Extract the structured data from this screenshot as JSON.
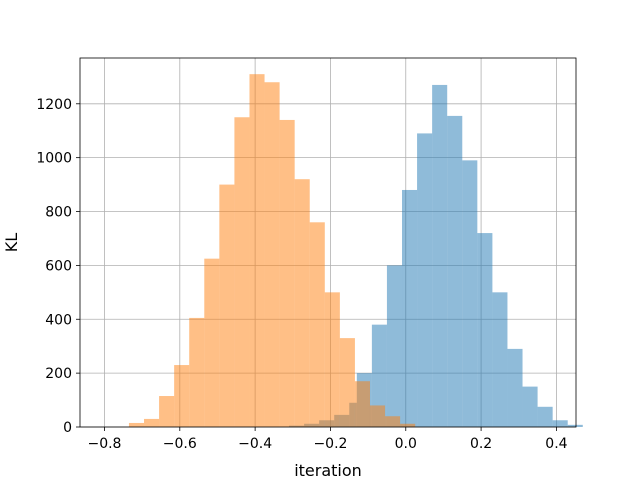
{
  "chart_data": {
    "type": "histogram",
    "title": "",
    "xlabel": "iteration",
    "ylabel": "KL",
    "xlim": [
      -0.865,
      0.452
    ],
    "ylim": [
      0,
      1370
    ],
    "grid": true,
    "x_ticks": [
      -0.8,
      -0.6,
      -0.4,
      -0.2,
      0.0,
      0.2,
      0.4
    ],
    "x_tick_labels": [
      "−0.8",
      "−0.6",
      "−0.4",
      "−0.2",
      "0.0",
      "0.2",
      "0.4"
    ],
    "y_ticks": [
      0,
      200,
      400,
      600,
      800,
      1000,
      1200
    ],
    "y_tick_labels": [
      "0",
      "200",
      "400",
      "600",
      "800",
      "1000",
      "1200"
    ],
    "series": [
      {
        "color": "#1f77b4",
        "alpha": 0.5,
        "bins": [
          {
            "x0": -0.31,
            "x1": -0.27,
            "count": 5
          },
          {
            "x0": -0.27,
            "x1": -0.23,
            "count": 12
          },
          {
            "x0": -0.23,
            "x1": -0.19,
            "count": 25
          },
          {
            "x0": -0.19,
            "x1": -0.15,
            "count": 45
          },
          {
            "x0": -0.15,
            "x1": -0.13,
            "count": 90
          },
          {
            "x0": -0.13,
            "x1": -0.09,
            "count": 200
          },
          {
            "x0": -0.09,
            "x1": -0.05,
            "count": 380
          },
          {
            "x0": -0.05,
            "x1": -0.01,
            "count": 600
          },
          {
            "x0": -0.01,
            "x1": 0.03,
            "count": 880
          },
          {
            "x0": 0.03,
            "x1": 0.07,
            "count": 1090
          },
          {
            "x0": 0.07,
            "x1": 0.11,
            "count": 1270
          },
          {
            "x0": 0.11,
            "x1": 0.15,
            "count": 1155
          },
          {
            "x0": 0.15,
            "x1": 0.19,
            "count": 990
          },
          {
            "x0": 0.19,
            "x1": 0.23,
            "count": 720
          },
          {
            "x0": 0.23,
            "x1": 0.27,
            "count": 500
          },
          {
            "x0": 0.27,
            "x1": 0.31,
            "count": 290
          },
          {
            "x0": 0.31,
            "x1": 0.35,
            "count": 150
          },
          {
            "x0": 0.35,
            "x1": 0.39,
            "count": 75
          },
          {
            "x0": 0.39,
            "x1": 0.43,
            "count": 25
          },
          {
            "x0": 0.43,
            "x1": 0.47,
            "count": 8
          }
        ]
      },
      {
        "color": "#ff7f0e",
        "alpha": 0.5,
        "bins": [
          {
            "x0": -0.735,
            "x1": -0.695,
            "count": 15
          },
          {
            "x0": -0.695,
            "x1": -0.655,
            "count": 30
          },
          {
            "x0": -0.655,
            "x1": -0.615,
            "count": 115
          },
          {
            "x0": -0.615,
            "x1": -0.575,
            "count": 230
          },
          {
            "x0": -0.575,
            "x1": -0.535,
            "count": 405
          },
          {
            "x0": -0.535,
            "x1": -0.495,
            "count": 625
          },
          {
            "x0": -0.495,
            "x1": -0.455,
            "count": 900
          },
          {
            "x0": -0.455,
            "x1": -0.415,
            "count": 1150
          },
          {
            "x0": -0.415,
            "x1": -0.375,
            "count": 1310
          },
          {
            "x0": -0.375,
            "x1": -0.335,
            "count": 1280
          },
          {
            "x0": -0.335,
            "x1": -0.295,
            "count": 1140
          },
          {
            "x0": -0.295,
            "x1": -0.255,
            "count": 920
          },
          {
            "x0": -0.255,
            "x1": -0.215,
            "count": 760
          },
          {
            "x0": -0.215,
            "x1": -0.175,
            "count": 500
          },
          {
            "x0": -0.175,
            "x1": -0.135,
            "count": 330
          },
          {
            "x0": -0.135,
            "x1": -0.095,
            "count": 170
          },
          {
            "x0": -0.095,
            "x1": -0.055,
            "count": 80
          },
          {
            "x0": -0.055,
            "x1": -0.015,
            "count": 40
          },
          {
            "x0": -0.015,
            "x1": 0.025,
            "count": 12
          }
        ]
      }
    ]
  }
}
